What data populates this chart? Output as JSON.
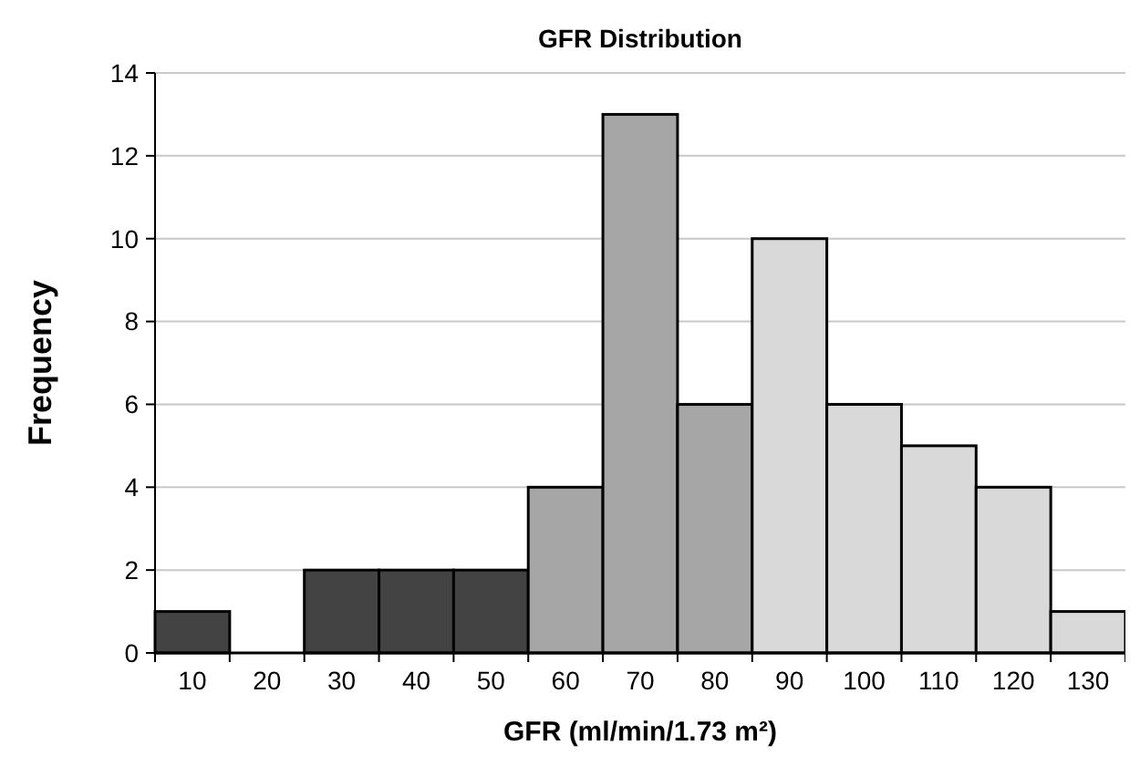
{
  "chart_data": {
    "type": "bar",
    "title": "GFR Distribution",
    "xlabel": "GFR (ml/min/1.73 m²)",
    "ylabel": "Frequency",
    "categories": [
      "10",
      "20",
      "30",
      "40",
      "50",
      "60",
      "70",
      "80",
      "90",
      "100",
      "110",
      "120",
      "130"
    ],
    "values": [
      1,
      0,
      2,
      2,
      2,
      4,
      13,
      6,
      10,
      6,
      5,
      4,
      1
    ],
    "colors": [
      "#434343",
      "#434343",
      "#434343",
      "#434343",
      "#434343",
      "#a6a6a6",
      "#a6a6a6",
      "#a6a6a6",
      "#d9d9d9",
      "#d9d9d9",
      "#d9d9d9",
      "#d9d9d9",
      "#d9d9d9"
    ],
    "ylim": [
      0,
      14
    ],
    "yticks": [
      0,
      2,
      4,
      6,
      8,
      10,
      12,
      14
    ],
    "grid": "y"
  }
}
